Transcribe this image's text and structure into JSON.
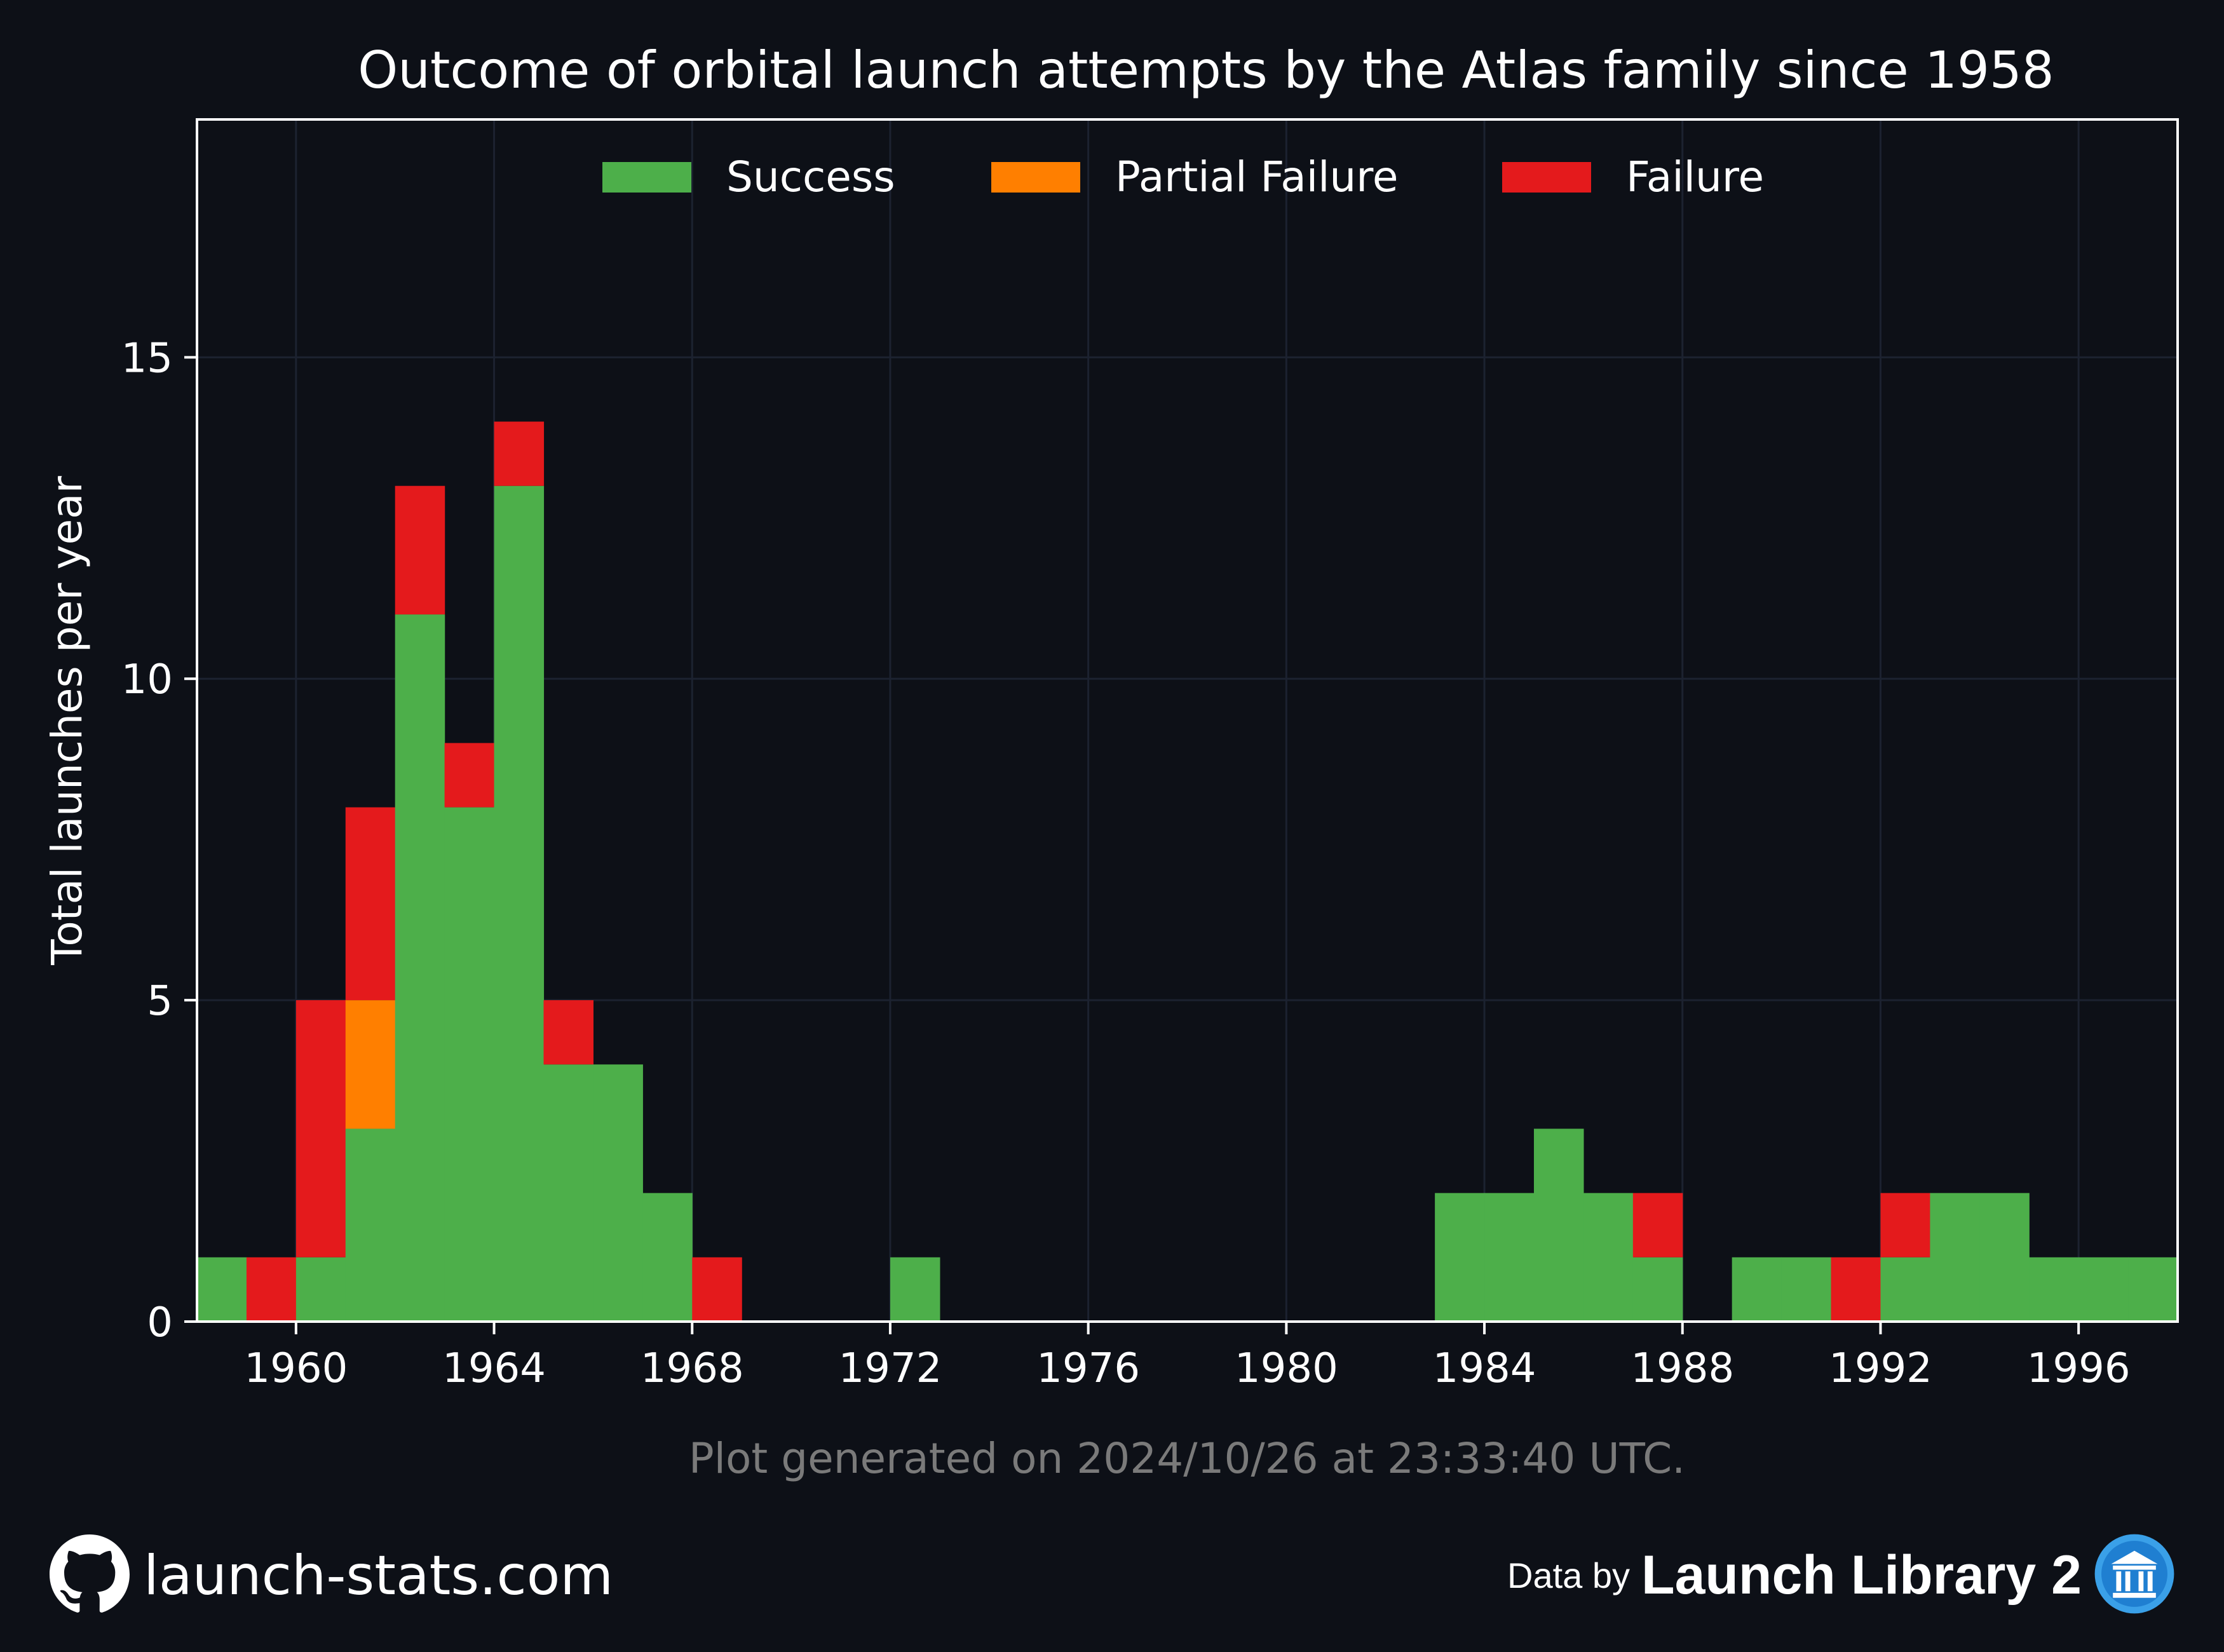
{
  "chart_data": {
    "type": "bar",
    "stacked": true,
    "title": "Outcome of orbital launch attempts by the Atlas family since 1958",
    "xlabel": "",
    "ylabel": "Total launches per year",
    "xlim": [
      1958,
      1998
    ],
    "ylim": [
      0,
      18.7
    ],
    "xticks": [
      1960,
      1964,
      1968,
      1972,
      1976,
      1980,
      1984,
      1988,
      1992,
      1996
    ],
    "yticks": [
      0,
      5,
      10,
      15
    ],
    "grid": true,
    "legend_position": "top-center",
    "x": [
      1958,
      1959,
      1960,
      1961,
      1962,
      1963,
      1964,
      1965,
      1966,
      1967,
      1968,
      1969,
      1970,
      1971,
      1972,
      1973,
      1974,
      1975,
      1976,
      1977,
      1978,
      1979,
      1980,
      1981,
      1982,
      1983,
      1984,
      1985,
      1986,
      1987,
      1988,
      1989,
      1990,
      1991,
      1992,
      1993,
      1994,
      1995,
      1996,
      1997
    ],
    "series": [
      {
        "name": "Success",
        "color": "#4daf4a",
        "values": [
          1,
          0,
          1,
          3,
          11,
          8,
          13,
          4,
          4,
          2,
          0,
          0,
          0,
          0,
          1,
          0,
          0,
          0,
          0,
          0,
          0,
          0,
          0,
          0,
          0,
          2,
          2,
          3,
          2,
          1,
          0,
          1,
          1,
          0,
          1,
          2,
          2,
          1,
          1,
          1
        ]
      },
      {
        "name": "Partial Failure",
        "color": "#ff7f00",
        "values": [
          0,
          0,
          0,
          2,
          0,
          0,
          0,
          0,
          0,
          0,
          0,
          0,
          0,
          0,
          0,
          0,
          0,
          0,
          0,
          0,
          0,
          0,
          0,
          0,
          0,
          0,
          0,
          0,
          0,
          0,
          0,
          0,
          0,
          0,
          0,
          0,
          0,
          0,
          0,
          0
        ]
      },
      {
        "name": "Failure",
        "color": "#e41a1c",
        "values": [
          0,
          1,
          4,
          3,
          2,
          1,
          1,
          1,
          0,
          0,
          1,
          0,
          0,
          0,
          0,
          0,
          0,
          0,
          0,
          0,
          0,
          0,
          0,
          0,
          0,
          0,
          0,
          0,
          0,
          1,
          0,
          0,
          0,
          1,
          1,
          0,
          0,
          0,
          0,
          0
        ]
      }
    ],
    "footnote": "Plot generated on 2024/10/26 at 23:33:40 UTC."
  },
  "footer": {
    "site": "launch-stats.com",
    "data_by": "Data by",
    "source": "Launch Library 2",
    "github_icon": "github-icon",
    "source_icon": "library-building-icon"
  }
}
